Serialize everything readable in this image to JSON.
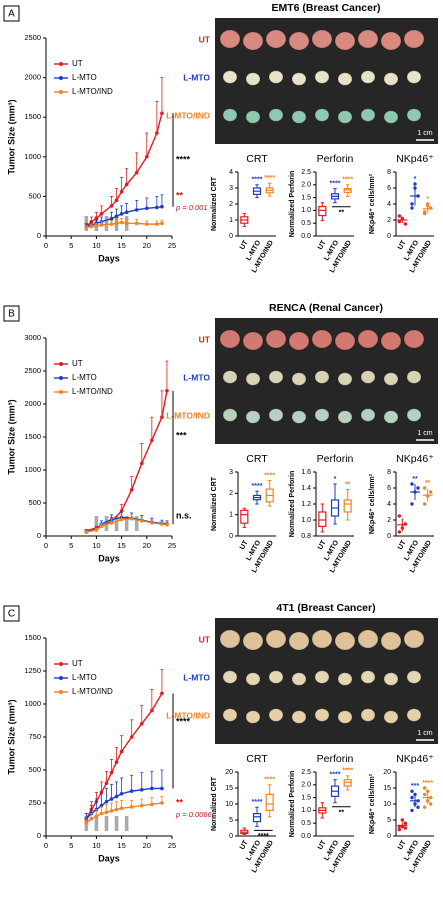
{
  "panels": [
    {
      "label": "A",
      "title": "EMT6 (Breast Cancer)",
      "photo_rows": [
        "UT",
        "L-MTO",
        "L-MTO/IND"
      ],
      "photo_row_colors": [
        "#e41a1c",
        "#1a3cc8",
        "#f5821f"
      ],
      "scale_bar": "1 cm"
    },
    {
      "label": "B",
      "title": "RENCA (Renal Cancer)",
      "photo_rows": [
        "UT",
        "L-MTO",
        "L-MTO/IND"
      ],
      "photo_row_colors": [
        "#e41a1c",
        "#1a3cc8",
        "#f5821f"
      ],
      "scale_bar": "1 cm"
    },
    {
      "label": "C",
      "title": "4T1 (Breast Cancer)",
      "photo_rows": [
        "UT",
        "L-MTO",
        "L-MTO/IND"
      ],
      "photo_row_colors": [
        "#e41a1c",
        "#1a3cc8",
        "#f5821f"
      ],
      "scale_bar": "1 cm"
    }
  ],
  "chart_data": [
    {
      "type": "line",
      "y_label": "Tumor Size (mm³)",
      "x_label": "Days",
      "xlim": [
        0,
        25
      ],
      "xticks": [
        0,
        5,
        10,
        15,
        20,
        25
      ],
      "ylim": [
        0,
        2500
      ],
      "yticks": [
        0,
        500,
        1000,
        1500,
        2000,
        2500
      ],
      "x": [
        8,
        9,
        10,
        11,
        13,
        14,
        15,
        16,
        18,
        20,
        22,
        23
      ],
      "treatment_days": [
        8,
        10,
        12,
        14,
        16
      ],
      "series": [
        {
          "name": "UT",
          "color": "#e41a1c",
          "values": [
            120,
            180,
            220,
            280,
            380,
            450,
            560,
            650,
            800,
            1000,
            1300,
            1550
          ],
          "errors": [
            40,
            60,
            80,
            100,
            120,
            150,
            180,
            200,
            250,
            300,
            400,
            450
          ]
        },
        {
          "name": "L-MTO",
          "color": "#1a3cc8",
          "values": [
            120,
            140,
            160,
            180,
            220,
            250,
            280,
            300,
            330,
            350,
            360,
            370
          ],
          "errors": [
            30,
            40,
            50,
            60,
            80,
            90,
            100,
            110,
            120,
            130,
            140,
            150
          ]
        },
        {
          "name": "L-MTO/IND",
          "color": "#f5821f",
          "values": [
            110,
            120,
            130,
            140,
            150,
            160,
            170,
            160,
            160,
            150,
            150,
            160
          ],
          "errors": [
            20,
            30,
            30,
            40,
            40,
            50,
            50,
            50,
            50,
            40,
            40,
            40
          ]
        }
      ],
      "annotations": [
        {
          "text": "****",
          "color": "#000000"
        },
        {
          "text": "**",
          "color": "#c4161c"
        },
        {
          "text": "p = 0.001",
          "color": "#c4161c"
        }
      ]
    },
    {
      "type": "box",
      "title": "CRT",
      "y_label": "Normalized CRT",
      "categories": [
        "UT",
        "L-MTO",
        "L-MTO/IND"
      ],
      "colors": [
        "#e41a1c",
        "#1a3cc8",
        "#f5821f"
      ],
      "ylim": [
        0,
        4
      ],
      "yticks": [
        0,
        1,
        2,
        3,
        4
      ],
      "boxes": [
        {
          "min": 0.6,
          "q1": 0.8,
          "median": 1.0,
          "q3": 1.2,
          "max": 1.4
        },
        {
          "min": 2.4,
          "q1": 2.6,
          "median": 2.8,
          "q3": 3.0,
          "max": 3.2
        },
        {
          "min": 2.5,
          "q1": 2.7,
          "median": 2.85,
          "q3": 3.0,
          "max": 3.3
        }
      ],
      "stars": [
        null,
        "****",
        "****"
      ]
    },
    {
      "type": "box",
      "title": "Perforin",
      "y_label": "Normalized Perforin",
      "categories": [
        "UT",
        "L-MTO",
        "L-MTO/IND"
      ],
      "colors": [
        "#e41a1c",
        "#1a3cc8",
        "#f5821f"
      ],
      "ylim": [
        0,
        2.5
      ],
      "yticks": [
        {
          "value": 0,
          "label": "0.0"
        },
        {
          "value": 0.5,
          "label": "0.5"
        },
        {
          "value": 1,
          "label": "1.0"
        },
        {
          "value": 1.5,
          "label": "1.5"
        },
        {
          "value": 2,
          "label": "2.0"
        },
        {
          "value": 2.5,
          "label": "2.5"
        }
      ],
      "boxes": [
        {
          "min": 0.6,
          "q1": 0.8,
          "median": 1.0,
          "q3": 1.15,
          "max": 1.3
        },
        {
          "min": 1.3,
          "q1": 1.45,
          "median": 1.55,
          "q3": 1.65,
          "max": 1.85
        },
        {
          "min": 1.55,
          "q1": 1.7,
          "median": 1.8,
          "q3": 1.85,
          "max": 2.0
        }
      ],
      "stars": [
        null,
        "****",
        "****"
      ],
      "bracket": "**"
    },
    {
      "type": "dot",
      "title": "NKp46⁺",
      "y_label": "NKp46⁺ cells/mm²",
      "categories": [
        "UT",
        "L-MTO",
        "L-MTO/IND"
      ],
      "colors": [
        "#e41a1c",
        "#1a3cc8",
        "#f5821f"
      ],
      "ylim": [
        0,
        8
      ],
      "yticks": [
        0,
        2,
        4,
        6,
        8
      ],
      "points": [
        [
          1.8,
          2.2,
          1.5,
          2.5
        ],
        [
          4,
          6,
          5,
          3.5,
          6.5
        ],
        [
          3,
          4,
          3.5,
          2.8,
          3.8
        ]
      ],
      "means": [
        2,
        5,
        3.4
      ],
      "errors": [
        0.4,
        1.2,
        0.5
      ],
      "stars": [
        null,
        "*",
        "*"
      ]
    },
    {
      "type": "line",
      "y_label": "Tumor Size (mm³)",
      "x_label": "Days",
      "xlim": [
        0,
        25
      ],
      "xticks": [
        0,
        5,
        10,
        15,
        20,
        25
      ],
      "ylim": [
        0,
        3000
      ],
      "yticks": [
        0,
        500,
        1000,
        1500,
        2000,
        2500,
        3000
      ],
      "x": [
        8,
        10,
        11,
        13,
        15,
        17,
        19,
        21,
        23,
        24
      ],
      "treatment_days": [
        10,
        12,
        14,
        16,
        18
      ],
      "series": [
        {
          "name": "UT",
          "color": "#e41a1c",
          "values": [
            80,
            120,
            150,
            220,
            380,
            700,
            1100,
            1450,
            1800,
            2200
          ],
          "errors": [
            20,
            30,
            40,
            60,
            100,
            200,
            300,
            350,
            400,
            450
          ]
        },
        {
          "name": "L-MTO",
          "color": "#1a3cc8",
          "values": [
            60,
            100,
            180,
            250,
            280,
            270,
            240,
            210,
            190,
            180
          ],
          "errors": [
            20,
            30,
            50,
            70,
            80,
            80,
            70,
            60,
            50,
            50
          ]
        },
        {
          "name": "L-MTO/IND",
          "color": "#f5821f",
          "values": [
            60,
            90,
            150,
            200,
            250,
            260,
            230,
            200,
            180,
            170
          ],
          "errors": [
            20,
            30,
            40,
            60,
            70,
            70,
            60,
            50,
            40,
            40
          ]
        }
      ],
      "annotations": [
        {
          "text": "***",
          "color": "#000000"
        },
        {
          "text": "n.s.",
          "color": "#000000"
        }
      ]
    },
    {
      "type": "box",
      "title": "CRT",
      "y_label": "Normalized CRT",
      "categories": [
        "UT",
        "L-MTO",
        "L-MTO/IND"
      ],
      "colors": [
        "#e41a1c",
        "#1a3cc8",
        "#f5821f"
      ],
      "ylim": [
        0,
        3
      ],
      "yticks": [
        0,
        1,
        2,
        3
      ],
      "boxes": [
        {
          "min": 0.4,
          "q1": 0.6,
          "median": 1.0,
          "q3": 1.2,
          "max": 1.3
        },
        {
          "min": 1.5,
          "q1": 1.7,
          "median": 1.8,
          "q3": 1.9,
          "max": 2.1
        },
        {
          "min": 1.4,
          "q1": 1.6,
          "median": 1.9,
          "q3": 2.2,
          "max": 2.6
        }
      ],
      "stars": [
        null,
        "****",
        "****"
      ]
    },
    {
      "type": "box",
      "title": "Perforin",
      "y_label": "Normalized Perforin",
      "categories": [
        "UT",
        "L-MTO",
        "L-MTO/IND"
      ],
      "colors": [
        "#e41a1c",
        "#1a3cc8",
        "#f5821f"
      ],
      "ylim": [
        0.8,
        1.6
      ],
      "yticks": [
        0.8,
        {
          "value": 1,
          "label": "1.0"
        },
        1.2,
        1.4,
        1.6
      ],
      "boxes": [
        {
          "min": 0.85,
          "q1": 0.92,
          "median": 1.0,
          "q3": 1.1,
          "max": 1.2
        },
        {
          "min": 0.95,
          "q1": 1.05,
          "median": 1.15,
          "q3": 1.25,
          "max": 1.45
        },
        {
          "min": 1.0,
          "q1": 1.1,
          "median": 1.2,
          "q3": 1.25,
          "max": 1.38
        }
      ],
      "stars": [
        null,
        "*",
        "**"
      ]
    },
    {
      "type": "dot",
      "title": "NKp46⁺",
      "y_label": "NKp46⁺ cells/mm²",
      "categories": [
        "UT",
        "L-MTO",
        "L-MTO/IND"
      ],
      "colors": [
        "#e41a1c",
        "#1a3cc8",
        "#f5821f"
      ],
      "ylim": [
        0,
        8
      ],
      "yticks": [
        0,
        2,
        4,
        6,
        8
      ],
      "points": [
        [
          0.5,
          1,
          1.5,
          2.5
        ],
        [
          4,
          5.5,
          6,
          6.5
        ],
        [
          4,
          5,
          5.5,
          6
        ]
      ],
      "means": [
        1.4,
        5.5,
        5.1
      ],
      "errors": [
        0.8,
        1.0,
        0.8
      ],
      "stars": [
        null,
        "**",
        "**"
      ]
    },
    {
      "type": "line",
      "y_label": "Tumor Size (mm³)",
      "x_label": "Days",
      "xlim": [
        0,
        25
      ],
      "xticks": [
        0,
        5,
        10,
        15,
        20,
        25
      ],
      "ylim": [
        0,
        1500
      ],
      "yticks": [
        0,
        250,
        500,
        750,
        1000,
        1250,
        1500
      ],
      "x": [
        8,
        9,
        10,
        11,
        12,
        13,
        14,
        15,
        17,
        19,
        21,
        23
      ],
      "treatment_days": [
        8,
        10,
        12,
        14,
        16
      ],
      "series": [
        {
          "name": "UT",
          "color": "#e41a1c",
          "values": [
            130,
            200,
            260,
            330,
            400,
            480,
            560,
            640,
            750,
            850,
            950,
            1080
          ],
          "errors": [
            40,
            60,
            70,
            80,
            90,
            100,
            110,
            120,
            130,
            140,
            160,
            180
          ]
        },
        {
          "name": "L-MTO",
          "color": "#1a3cc8",
          "values": [
            130,
            170,
            200,
            230,
            260,
            280,
            300,
            320,
            340,
            350,
            360,
            360
          ],
          "errors": [
            40,
            60,
            80,
            90,
            100,
            110,
            110,
            120,
            120,
            130,
            130,
            140
          ]
        },
        {
          "name": "L-MTO/IND",
          "color": "#f5821f",
          "values": [
            100,
            130,
            150,
            170,
            180,
            190,
            200,
            210,
            220,
            230,
            240,
            250
          ],
          "errors": [
            30,
            40,
            50,
            50,
            60,
            60,
            60,
            60,
            50,
            50,
            50,
            50
          ]
        }
      ],
      "annotations": [
        {
          "text": "****",
          "color": "#000000"
        },
        {
          "text": "**",
          "color": "#c4161c"
        },
        {
          "text": "p = 0.0066",
          "color": "#c4161c"
        }
      ]
    },
    {
      "type": "box",
      "title": "CRT",
      "y_label": "Normalized CRT",
      "categories": [
        "UT",
        "L-MTO",
        "L-MTO/IND"
      ],
      "colors": [
        "#e41a1c",
        "#1a3cc8",
        "#f5821f"
      ],
      "ylim": [
        0,
        20
      ],
      "yticks": [
        0,
        5,
        10,
        15,
        20
      ],
      "boxes": [
        {
          "min": 0.5,
          "q1": 0.8,
          "median": 1.2,
          "q3": 1.8,
          "max": 2.5
        },
        {
          "min": 3,
          "q1": 4.5,
          "median": 6,
          "q3": 7,
          "max": 9
        },
        {
          "min": 6,
          "q1": 8,
          "median": 10,
          "q3": 13,
          "max": 16
        }
      ],
      "stars": [
        null,
        "****",
        "****"
      ],
      "bracket": "****"
    },
    {
      "type": "box",
      "title": "Perforin",
      "y_label": "Normalized Perforin",
      "categories": [
        "UT",
        "L-MTO",
        "L-MTO/IND"
      ],
      "colors": [
        "#e41a1c",
        "#1a3cc8",
        "#f5821f"
      ],
      "ylim": [
        0,
        2.5
      ],
      "yticks": [
        {
          "value": 0,
          "label": "0.0"
        },
        {
          "value": 0.5,
          "label": "0.5"
        },
        {
          "value": 1,
          "label": "1.0"
        },
        {
          "value": 1.5,
          "label": "1.5"
        },
        {
          "value": 2,
          "label": "2.0"
        },
        {
          "value": 2.5,
          "label": "2.5"
        }
      ],
      "boxes": [
        {
          "min": 0.7,
          "q1": 0.9,
          "median": 1.0,
          "q3": 1.1,
          "max": 1.3
        },
        {
          "min": 1.3,
          "q1": 1.55,
          "median": 1.75,
          "q3": 1.95,
          "max": 2.2
        },
        {
          "min": 1.8,
          "q1": 1.95,
          "median": 2.1,
          "q3": 2.2,
          "max": 2.35
        }
      ],
      "stars": [
        null,
        "****",
        "****"
      ],
      "bracket": "**"
    },
    {
      "type": "dot",
      "title": "NKp46⁺",
      "y_label": "NKp46⁺ cells/mm²",
      "categories": [
        "UT",
        "L-MTO",
        "L-MTO/IND"
      ],
      "colors": [
        "#e41a1c",
        "#1a3cc8",
        "#f5821f"
      ],
      "ylim": [
        0,
        20
      ],
      "yticks": [
        0,
        5,
        10,
        15,
        20
      ],
      "points": [
        [
          2,
          3,
          4,
          3,
          5,
          2.5
        ],
        [
          8,
          10,
          11,
          12,
          13,
          9,
          14
        ],
        [
          9,
          11,
          12,
          13,
          14,
          10,
          15
        ]
      ],
      "means": [
        3.3,
        11,
        12
      ],
      "errors": [
        1,
        2,
        2
      ],
      "stars": [
        null,
        "***",
        "****"
      ]
    }
  ]
}
